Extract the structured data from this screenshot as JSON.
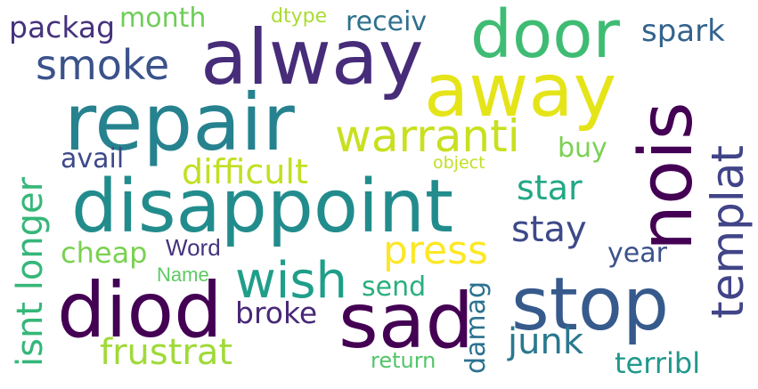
{
  "words": [
    {
      "id": "alway",
      "text": "alway",
      "color": "#472c7a"
    },
    {
      "id": "door",
      "text": "door",
      "color": "#3fbc73"
    },
    {
      "id": "away",
      "text": "away",
      "color": "#e5e419"
    },
    {
      "id": "repair",
      "text": "repair",
      "color": "#26828e"
    },
    {
      "id": "disappoint",
      "text": "disappoint",
      "color": "#228c8d"
    },
    {
      "id": "nois",
      "text": "nois",
      "color": "#440154"
    },
    {
      "id": "stop",
      "text": "stop",
      "color": "#375a8c"
    },
    {
      "id": "diod",
      "text": "diod",
      "color": "#440154"
    },
    {
      "id": "sad",
      "text": "sad",
      "color": "#440154"
    },
    {
      "id": "warranti",
      "text": "warranti",
      "color": "#c8e020"
    },
    {
      "id": "templat",
      "text": "templat",
      "color": "#414487"
    },
    {
      "id": "smoke",
      "text": "smoke",
      "color": "#3b528b"
    },
    {
      "id": "wish",
      "text": "wish",
      "color": "#1f9e89"
    },
    {
      "id": "difficult",
      "text": "difficult",
      "color": "#c2df23"
    },
    {
      "id": "press",
      "text": "press",
      "color": "#fde725"
    },
    {
      "id": "frustrat",
      "text": "frustrat",
      "color": "#a0da39"
    },
    {
      "id": "isnt-longer",
      "text": "isnt longer",
      "color": "#35b779"
    },
    {
      "id": "junk",
      "text": "junk",
      "color": "#2a788e"
    },
    {
      "id": "stay",
      "text": "stay",
      "color": "#3e4989"
    },
    {
      "id": "star",
      "text": "star",
      "color": "#22a884"
    },
    {
      "id": "packag",
      "text": "packag",
      "color": "#46327e"
    },
    {
      "id": "receiv",
      "text": "receiv",
      "color": "#2d708e"
    },
    {
      "id": "spark",
      "text": "spark",
      "color": "#33638d"
    },
    {
      "id": "month",
      "text": "month",
      "color": "#6ece58"
    },
    {
      "id": "terribl",
      "text": "terribl",
      "color": "#1f988b"
    },
    {
      "id": "broke",
      "text": "broke",
      "color": "#482878"
    },
    {
      "id": "damag",
      "text": "damag",
      "color": "#2c728e"
    },
    {
      "id": "cheap",
      "text": "cheap",
      "color": "#7ad151"
    },
    {
      "id": "avail",
      "text": "avail",
      "color": "#3e4989"
    },
    {
      "id": "buy",
      "text": "buy",
      "color": "#7ad151"
    },
    {
      "id": "send",
      "text": "send",
      "color": "#29af7f"
    },
    {
      "id": "year",
      "text": "year",
      "color": "#3b528b"
    },
    {
      "id": "return",
      "text": "return",
      "color": "#52c569"
    },
    {
      "id": "word",
      "text": "Word",
      "color": "#46337e"
    },
    {
      "id": "name",
      "text": "Name",
      "color": "#5ec962"
    },
    {
      "id": "dtype",
      "text": "dtype",
      "color": "#aadc32"
    },
    {
      "id": "object",
      "text": "object",
      "color": "#c2df23"
    }
  ]
}
